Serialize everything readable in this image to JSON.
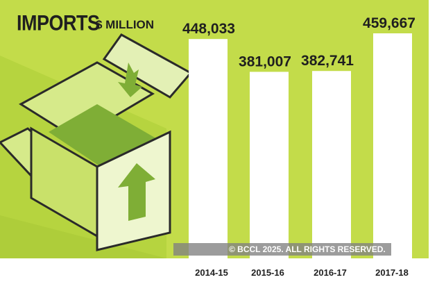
{
  "chart_data": {
    "type": "bar",
    "title": "IMPORTS",
    "unit": "$ MILLION",
    "categories": [
      "2014-15",
      "2015-16",
      "2016-17",
      "2017-18"
    ],
    "values": [
      448033,
      381007,
      382741,
      459667
    ],
    "value_labels": [
      "448,033",
      "381,007",
      "382,741",
      "459,667"
    ],
    "grid": false,
    "legend": "none"
  },
  "copyright": "© BCCL 2025. ALL RIGHTS RESERVED.",
  "colors": {
    "background": "#c3dc4a",
    "stripe": "#b1d23c",
    "bar": "#ffffff",
    "text": "#1f1f1f",
    "box_outline": "#2a2a2a"
  }
}
